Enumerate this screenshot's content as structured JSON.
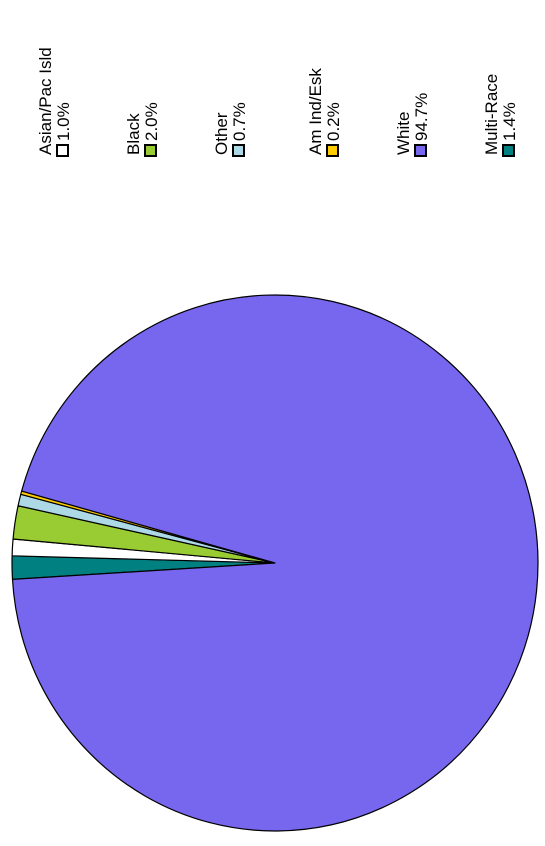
{
  "chart_data": {
    "type": "pie",
    "orientation": "rotated-90-clockwise",
    "slices": [
      {
        "label": "Asian/Pac Isld",
        "percent_label": "1.0%",
        "value": 1.0,
        "color": "#ffffff"
      },
      {
        "label": "Black",
        "percent_label": "2.0%",
        "value": 2.0,
        "color": "#99cc33"
      },
      {
        "label": "Other",
        "percent_label": "0.7%",
        "value": 0.7,
        "color": "#add8e6"
      },
      {
        "label": "Am Ind/Esk",
        "percent_label": "0.2%",
        "value": 0.2,
        "color": "#ffcc00"
      },
      {
        "label": "White",
        "percent_label": "94.7%",
        "value": 94.7,
        "color": "#7766ee"
      },
      {
        "label": "Multi-Race",
        "percent_label": "1.4%",
        "value": 1.4,
        "color": "#008080"
      }
    ],
    "legend_position": "right"
  }
}
